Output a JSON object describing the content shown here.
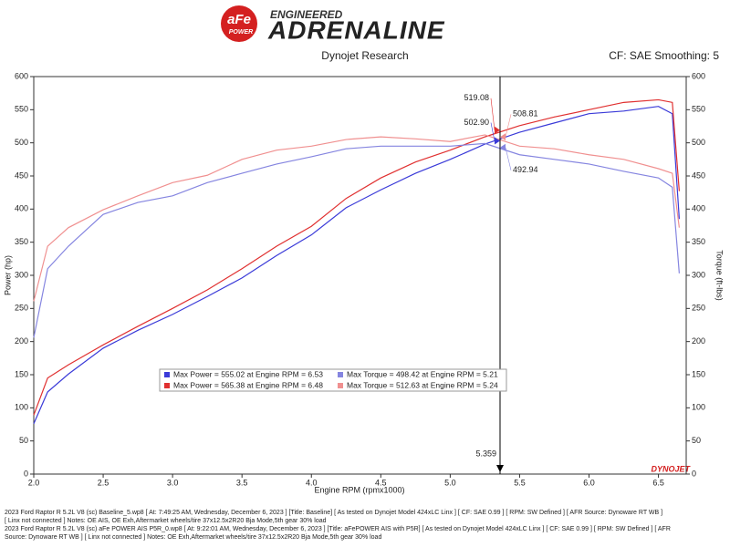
{
  "header": {
    "logo_badge": "aFe",
    "logo_sub": "POWER",
    "tagline": "ENGINEERED",
    "brand": "ADRENALINE",
    "company": "Dynojet Research",
    "settings": "CF: SAE Smoothing: 5",
    "dyno_logo": "DYNOJET"
  },
  "chart_data": {
    "type": "line",
    "x_label": "Engine RPM (rpmx1000)",
    "y_label": "Power (hp)",
    "y2_label": "Torque (ft-lbs)",
    "x": [
      2.0,
      2.1,
      2.25,
      2.5,
      2.75,
      3.0,
      3.25,
      3.5,
      3.75,
      4.0,
      4.25,
      4.5,
      4.75,
      5.0,
      5.25,
      5.5,
      5.75,
      6.0,
      6.25,
      6.5,
      6.6,
      6.65
    ],
    "series": [
      {
        "name": "Max Power = 555.02 at Engine RPM = 6.53",
        "color": "#3a3ad8",
        "values": [
          76,
          124,
          151,
          190,
          217,
          241,
          268,
          296,
          330,
          361,
          402,
          429,
          454,
          475,
          498,
          516,
          530,
          544,
          548,
          555,
          544,
          385
        ]
      },
      {
        "name": "Max Power = 565.38 at Engine RPM = 6.48",
        "color": "#e03030",
        "values": [
          89,
          145,
          165,
          195,
          223,
          250,
          278,
          310,
          344,
          374,
          416,
          447,
          471,
          489,
          509,
          526,
          539,
          550,
          561,
          565,
          561,
          427
        ]
      },
      {
        "name": "Max Torque = 498.42 at Engine RPM = 5.21",
        "color": "#8585e0",
        "axis": "y2",
        "values": [
          206,
          310,
          344,
          392,
          410,
          420,
          440,
          454,
          468,
          479,
          491,
          495,
          495,
          495,
          499,
          482,
          475,
          468,
          457,
          447,
          433,
          303
        ]
      },
      {
        "name": "Max Torque = 512.63 at Engine RPM = 5.24",
        "color": "#f09090",
        "axis": "y2",
        "values": [
          261,
          344,
          372,
          399,
          420,
          440,
          451,
          475,
          489,
          495,
          505,
          509,
          506,
          502,
          512,
          495,
          491,
          482,
          475,
          461,
          454,
          372
        ]
      }
    ],
    "xlim": [
      2.0,
      6.7
    ],
    "xticks": [
      {
        "value": 2.0,
        "label": "2.0"
      },
      {
        "value": 2.5,
        "label": "2.5"
      },
      {
        "value": 3.0,
        "label": "3.0"
      },
      {
        "value": 3.5,
        "label": "3.5"
      },
      {
        "value": 4.0,
        "label": "4.0"
      },
      {
        "value": 4.5,
        "label": "4.5"
      },
      {
        "value": 5.0,
        "label": "5.0"
      },
      {
        "value": 5.5,
        "label": "5.5"
      },
      {
        "value": 6.0,
        "label": "6.0"
      },
      {
        "value": 6.5,
        "label": "6.5"
      }
    ],
    "ylim": [
      0,
      600
    ],
    "yticks": [
      0,
      50,
      100,
      150,
      200,
      250,
      300,
      350,
      400,
      450,
      500,
      550,
      600
    ],
    "y2lim": [
      0,
      600
    ],
    "y2ticks": [
      0,
      50,
      100,
      150,
      200,
      250,
      300,
      350,
      400,
      450,
      500,
      550,
      600
    ],
    "cursor": 5.359,
    "annotations": [
      {
        "value": 519.08,
        "label": "519.08",
        "color": "#e03030"
      },
      {
        "value": 502.9,
        "label": "502.90",
        "color": "#3a3ad8"
      },
      {
        "value": 508.81,
        "label": "508.81",
        "color": "#f09090"
      },
      {
        "value": 492.94,
        "label": "492.94",
        "color": "#8585e0"
      }
    ]
  },
  "footer": {
    "lines": [
      "2023 Ford Raptor R 5.2L V8 (sc) Baseline_5.wp8 [ At: 7:49:25 AM, Wednesday, December 6, 2023 ] [Title: Baseline]  [ As tested on Dynojet Model 424xLC Linx ]  [ CF: SAE 0.99 ]  [ RPM: SW Defined ]  [ AFR Source: Dynoware RT WB ]",
      "[ Linx not connected ]  Notes: OE AIS, OE Exh,Aftermarket wheels/tire 37x12.5x2R20 Bja Mode,5th gear 30% load",
      "2023 Ford Raptor R 5.2L V8 (sc) aFe POWER AIS P5R_0.wp8 [ At: 9:22:01 AM, Wednesday, December 6, 2023 ] [Title: aFePOWER AIS with P5R]  [ As tested on Dynojet Model 424xLC Linx ]  [ CF: SAE 0.99 ]  [ RPM: SW Defined ]  [ AFR",
      "Source: Dynoware RT WB ]  [ Linx not connected ]  Notes: OE Exh,Aftermarket wheels/tire 37x12.5x2R20 Bja Mode,5th gear 30% load"
    ]
  }
}
